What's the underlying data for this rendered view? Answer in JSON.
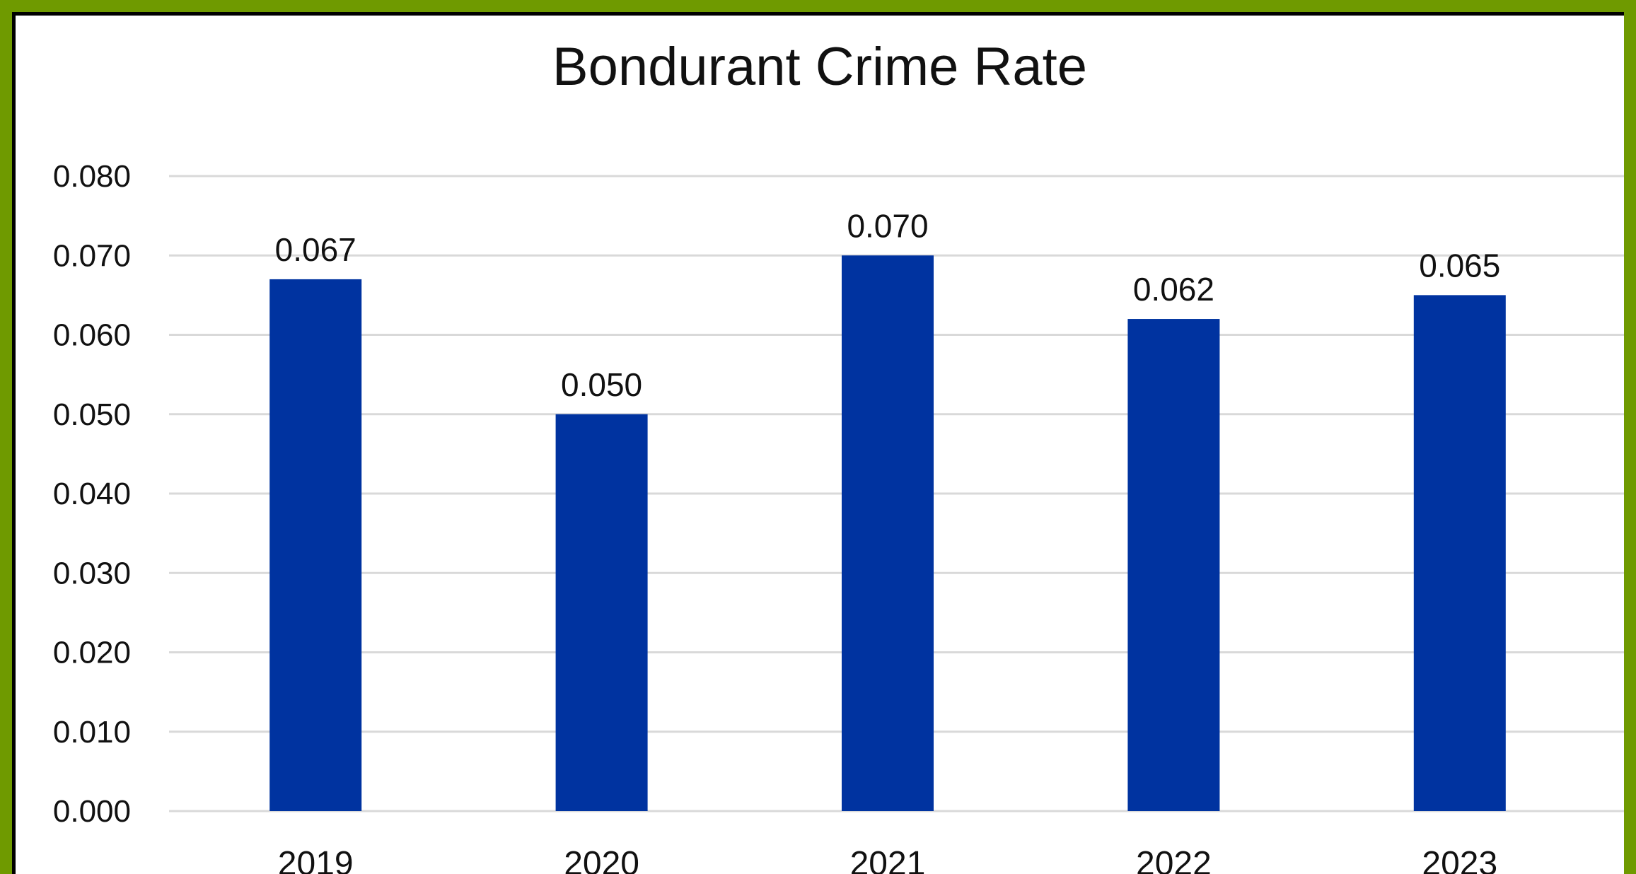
{
  "chart_data": {
    "type": "bar",
    "title": "Bondurant Crime Rate",
    "xlabel": "",
    "ylabel": "",
    "categories": [
      "2019",
      "2020",
      "2021",
      "2022",
      "2023"
    ],
    "values": [
      0.067,
      0.05,
      0.07,
      0.062,
      0.065
    ],
    "data_labels": [
      "0.067",
      "0.050",
      "0.070",
      "0.062",
      "0.065"
    ],
    "yticks": [
      "0.000",
      "0.010",
      "0.020",
      "0.030",
      "0.040",
      "0.050",
      "0.060",
      "0.070",
      "0.080"
    ],
    "ylim": [
      0,
      0.08
    ],
    "grid": true,
    "legend": "none",
    "bar_color": "#0033a0",
    "grid_color": "#d9d9d9",
    "frame_color": "#6f9a00"
  }
}
